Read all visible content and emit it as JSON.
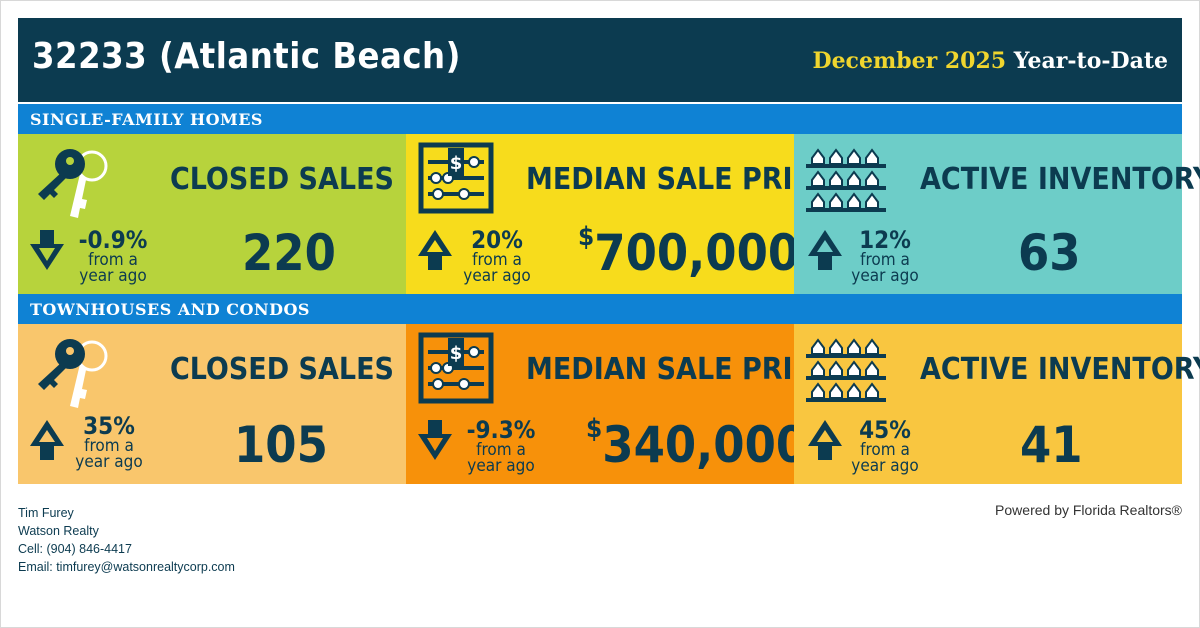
{
  "header": {
    "title": "32233 (Atlantic Beach)",
    "period_highlight": "December 2025",
    "period_rest": "Year-to-Date"
  },
  "sections": [
    {
      "title": "SINGLE-FAMILY HOMES",
      "panels": [
        {
          "label": "CLOSED SALES",
          "change": "-0.9%",
          "direction": "down",
          "change_sub1": "from a",
          "change_sub2": "year ago",
          "value": "220",
          "bg": "#b7d33c",
          "icon": "keys-icon"
        },
        {
          "label": "MEDIAN SALE PRICE",
          "change": "20%",
          "direction": "up",
          "change_sub1": "from a",
          "change_sub2": "year ago",
          "currency": "$",
          "value": "700,000",
          "bg": "#f7dc1c",
          "icon": "abacus-icon"
        },
        {
          "label": "ACTIVE INVENTORY",
          "change": "12%",
          "direction": "up",
          "change_sub1": "from a",
          "change_sub2": "year ago",
          "value": "63",
          "bg": "#6dcdc8",
          "icon": "houses-icon"
        }
      ]
    },
    {
      "title": "TOWNHOUSES AND CONDOS",
      "panels": [
        {
          "label": "CLOSED SALES",
          "change": "35%",
          "direction": "up",
          "change_sub1": "from a",
          "change_sub2": "year ago",
          "value": "105",
          "bg": "#f9c66c",
          "icon": "keys-icon"
        },
        {
          "label": "MEDIAN SALE PRICE",
          "change": "-9.3%",
          "direction": "down",
          "change_sub1": "from a",
          "change_sub2": "year ago",
          "currency": "$",
          "value": "340,000",
          "bg": "#f7910a",
          "icon": "abacus-icon"
        },
        {
          "label": "ACTIVE INVENTORY",
          "change": "45%",
          "direction": "up",
          "change_sub1": "from a",
          "change_sub2": "year ago",
          "value": "41",
          "bg": "#f9c640",
          "icon": "houses-icon"
        }
      ]
    }
  ],
  "contact": {
    "name": "Tim Furey",
    "company": "Watson Realty",
    "cell": "Cell: (904) 846-4417",
    "email": "Email: timfurey@watsonrealtycorp.com"
  },
  "powered_by": "Powered by Florida Realtors®",
  "colors": {
    "navy": "#0c3b50",
    "blue": "#0f82d4",
    "gold": "#f0d52e"
  }
}
